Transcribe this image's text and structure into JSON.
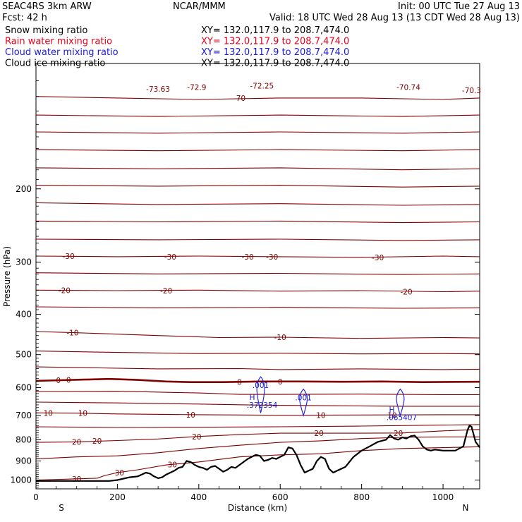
{
  "header": {
    "model": "SEAC4RS  3km ARW",
    "org": "NCAR/MMM",
    "init": "Init: 00 UTC Tue 27 Aug 13",
    "fcst": "Fcst:   42 h",
    "valid": "Valid: 18 UTC Wed 28 Aug 13 (13 CDT Wed 28 Aug 13)"
  },
  "fields": [
    {
      "label": "Snow mixing ratio",
      "xy": "XY= 132.0,117.9 to 208.7,474.0",
      "color": "#000000"
    },
    {
      "label": "Rain water mixing ratio",
      "xy": "XY= 132.0,117.9 to 208.7,474.0",
      "color": "#e8001a"
    },
    {
      "label": "Cloud water mixing ratio",
      "xy": "XY= 132.0,117.9 to 208.7,474.0",
      "color": "#1a1adc"
    },
    {
      "label": "Cloud ice mixing ratio",
      "xy": "XY= 132.0,117.9 to 208.7,474.0",
      "color": "#000000"
    }
  ],
  "chart_data": {
    "type": "line",
    "title": "",
    "xlabel": "Distance (km)",
    "ylabel": "Pressure (hPa)",
    "xlim": [
      0,
      1090
    ],
    "ylim": [
      1050,
      100
    ],
    "y_scale": "log",
    "x_ticks": [
      0,
      200,
      400,
      600,
      800,
      1000
    ],
    "y_ticks": [
      200,
      300,
      400,
      500,
      600,
      700,
      800,
      900,
      1000
    ],
    "y_tick_labels": [
      "200",
      "300",
      "400",
      "500",
      "600",
      "700",
      "800",
      "900",
      "1000"
    ],
    "x_end_labels": {
      "left": "S",
      "right": "N"
    },
    "grid": false,
    "temperature_color": "#800000",
    "terrain_color": "#000000",
    "cloud_color": "#1a1adc",
    "temperature_contours": [
      {
        "level": -70,
        "points": [
          [
            0,
            120
          ],
          [
            200,
            121
          ],
          [
            400,
            122
          ],
          [
            600,
            121
          ],
          [
            800,
            121
          ],
          [
            1000,
            122
          ],
          [
            1090,
            121
          ]
        ]
      },
      {
        "level": null,
        "points": [
          [
            0,
            133
          ],
          [
            300,
            134
          ],
          [
            600,
            133
          ],
          [
            900,
            134
          ],
          [
            1090,
            133
          ]
        ]
      },
      {
        "level": null,
        "points": [
          [
            0,
            146
          ],
          [
            300,
            147
          ],
          [
            600,
            146
          ],
          [
            900,
            147
          ],
          [
            1090,
            146
          ]
        ]
      },
      {
        "level": null,
        "points": [
          [
            0,
            161
          ],
          [
            300,
            162
          ],
          [
            600,
            161
          ],
          [
            900,
            162
          ],
          [
            1090,
            161
          ]
        ]
      },
      {
        "level": null,
        "points": [
          [
            0,
            178
          ],
          [
            300,
            179
          ],
          [
            600,
            178
          ],
          [
            900,
            180
          ],
          [
            1090,
            179
          ]
        ]
      },
      {
        "level": null,
        "points": [
          [
            0,
            196
          ],
          [
            300,
            197
          ],
          [
            600,
            196
          ],
          [
            900,
            198
          ],
          [
            1090,
            197
          ]
        ]
      },
      {
        "level": null,
        "points": [
          [
            0,
            216
          ],
          [
            300,
            218
          ],
          [
            600,
            217
          ],
          [
            900,
            219
          ],
          [
            1090,
            218
          ]
        ]
      },
      {
        "level": null,
        "points": [
          [
            0,
            239
          ],
          [
            300,
            240
          ],
          [
            600,
            239
          ],
          [
            900,
            241
          ],
          [
            1090,
            240
          ]
        ]
      },
      {
        "level": null,
        "points": [
          [
            0,
            264
          ],
          [
            300,
            265
          ],
          [
            600,
            264
          ],
          [
            900,
            266
          ],
          [
            1090,
            265
          ]
        ]
      },
      {
        "level": -30,
        "points": [
          [
            0,
            290
          ],
          [
            200,
            291
          ],
          [
            400,
            290
          ],
          [
            600,
            291
          ],
          [
            800,
            292
          ],
          [
            1000,
            290
          ],
          [
            1090,
            291
          ]
        ]
      },
      {
        "level": null,
        "points": [
          [
            0,
            318
          ],
          [
            300,
            320
          ],
          [
            600,
            319
          ],
          [
            900,
            321
          ],
          [
            1090,
            320
          ]
        ]
      },
      {
        "level": -20,
        "points": [
          [
            0,
            350
          ],
          [
            200,
            351
          ],
          [
            400,
            350
          ],
          [
            600,
            352
          ],
          [
            800,
            351
          ],
          [
            1000,
            353
          ],
          [
            1090,
            352
          ]
        ]
      },
      {
        "level": null,
        "points": [
          [
            0,
            384
          ],
          [
            300,
            386
          ],
          [
            600,
            385
          ],
          [
            900,
            387
          ],
          [
            1090,
            386
          ]
        ]
      },
      {
        "level": -10,
        "points": [
          [
            0,
            440
          ],
          [
            100,
            443
          ],
          [
            300,
            450
          ],
          [
            450,
            455
          ],
          [
            600,
            454
          ],
          [
            800,
            457
          ],
          [
            1000,
            455
          ],
          [
            1090,
            456
          ]
        ]
      },
      {
        "level": null,
        "points": [
          [
            0,
            490
          ],
          [
            200,
            494
          ],
          [
            400,
            497
          ],
          [
            600,
            496
          ],
          [
            800,
            498
          ],
          [
            1000,
            497
          ],
          [
            1090,
            498
          ]
        ]
      },
      {
        "level": null,
        "points": [
          [
            0,
            535
          ],
          [
            150,
            538
          ],
          [
            300,
            541
          ],
          [
            500,
            540
          ],
          [
            600,
            543
          ],
          [
            800,
            541
          ],
          [
            1000,
            543
          ],
          [
            1090,
            542
          ]
        ]
      },
      {
        "level": 0,
        "bold": true,
        "points": [
          [
            0,
            578
          ],
          [
            60,
            576
          ],
          [
            120,
            574
          ],
          [
            180,
            572
          ],
          [
            250,
            575
          ],
          [
            320,
            580
          ],
          [
            380,
            582
          ],
          [
            460,
            582
          ],
          [
            550,
            580
          ],
          [
            650,
            580
          ],
          [
            750,
            581
          ],
          [
            850,
            580
          ],
          [
            950,
            582
          ],
          [
            1090,
            581
          ]
        ]
      },
      {
        "level": null,
        "points": [
          [
            0,
            613
          ],
          [
            200,
            612
          ],
          [
            400,
            618
          ],
          [
            500,
            623
          ],
          [
            600,
            623
          ],
          [
            800,
            622
          ],
          [
            1000,
            624
          ],
          [
            1090,
            624
          ]
        ]
      },
      {
        "level": null,
        "points": [
          [
            0,
            650
          ],
          [
            200,
            653
          ],
          [
            400,
            657
          ],
          [
            550,
            661
          ],
          [
            700,
            663
          ],
          [
            900,
            665
          ],
          [
            1090,
            665
          ]
        ]
      },
      {
        "level": 10,
        "points": [
          [
            0,
            690
          ],
          [
            100,
            691
          ],
          [
            200,
            694
          ],
          [
            400,
            697
          ],
          [
            600,
            699
          ],
          [
            800,
            698
          ],
          [
            1000,
            697
          ],
          [
            1090,
            697
          ]
        ]
      },
      {
        "level": null,
        "points": [
          [
            0,
            745
          ],
          [
            200,
            748
          ],
          [
            400,
            747
          ],
          [
            600,
            745
          ],
          [
            800,
            742
          ],
          [
            1000,
            738
          ],
          [
            1090,
            736
          ]
        ]
      },
      {
        "level": 20,
        "points": [
          [
            0,
            812
          ],
          [
            100,
            810
          ],
          [
            200,
            804
          ],
          [
            300,
            797
          ],
          [
            400,
            786
          ],
          [
            500,
            778
          ],
          [
            600,
            772
          ],
          [
            700,
            772
          ],
          [
            800,
            772
          ],
          [
            900,
            771
          ],
          [
            1000,
            762
          ],
          [
            1090,
            756
          ]
        ]
      },
      {
        "level": 30,
        "points": [
          [
            0,
            1000
          ],
          [
            80,
            995
          ],
          [
            150,
            990
          ],
          [
            170,
            975
          ],
          [
            200,
            960
          ],
          [
            250,
            945
          ],
          [
            320,
            920
          ],
          [
            400,
            905
          ],
          [
            500,
            880
          ],
          [
            600,
            870
          ],
          [
            700,
            865
          ],
          [
            800,
            850
          ],
          [
            900,
            840
          ],
          [
            1000,
            836
          ],
          [
            1090,
            832
          ]
        ]
      },
      {
        "level": null,
        "points": [
          [
            0,
            890
          ],
          [
            100,
            880
          ],
          [
            200,
            875
          ],
          [
            300,
            860
          ],
          [
            400,
            840
          ],
          [
            500,
            825
          ],
          [
            600,
            812
          ],
          [
            700,
            805
          ],
          [
            800,
            795
          ],
          [
            900,
            790
          ],
          [
            1000,
            788
          ],
          [
            1090,
            788
          ]
        ]
      }
    ],
    "contour_labels": [
      {
        "text": "-73.63",
        "x": 300,
        "p": 115
      },
      {
        "text": "-72.9",
        "x": 395,
        "p": 114
      },
      {
        "text": "-72.25",
        "x": 555,
        "p": 113
      },
      {
        "text": "-70.74",
        "x": 915,
        "p": 114
      },
      {
        "text": "-70.3",
        "x": 1070,
        "p": 116
      },
      {
        "text": "-70",
        "x": 500,
        "p": 121
      },
      {
        "text": "-30",
        "x": 80,
        "p": 290
      },
      {
        "text": "-30",
        "x": 330,
        "p": 291
      },
      {
        "text": "-30",
        "x": 520,
        "p": 291
      },
      {
        "text": "-30",
        "x": 580,
        "p": 291
      },
      {
        "text": "-30",
        "x": 840,
        "p": 292
      },
      {
        "text": "-20",
        "x": 70,
        "p": 350
      },
      {
        "text": "-20",
        "x": 320,
        "p": 351
      },
      {
        "text": "-20",
        "x": 910,
        "p": 353
      },
      {
        "text": "-10",
        "x": 90,
        "p": 443
      },
      {
        "text": "-10",
        "x": 600,
        "p": 454
      },
      {
        "text": "0",
        "x": 55,
        "p": 576
      },
      {
        "text": "0",
        "x": 80,
        "p": 575
      },
      {
        "text": "0",
        "x": 500,
        "p": 582
      },
      {
        "text": "0",
        "x": 600,
        "p": 580
      },
      {
        "text": "10",
        "x": 30,
        "p": 690
      },
      {
        "text": "10",
        "x": 115,
        "p": 691
      },
      {
        "text": "10",
        "x": 380,
        "p": 697
      },
      {
        "text": "10",
        "x": 700,
        "p": 699
      },
      {
        "text": "10",
        "x": 875,
        "p": 698
      },
      {
        "text": "20",
        "x": 100,
        "p": 810
      },
      {
        "text": "20",
        "x": 150,
        "p": 806
      },
      {
        "text": "20",
        "x": 395,
        "p": 787
      },
      {
        "text": "20",
        "x": 695,
        "p": 772
      },
      {
        "text": "20",
        "x": 890,
        "p": 771
      },
      {
        "text": "30",
        "x": 100,
        "p": 995
      },
      {
        "text": "30",
        "x": 205,
        "p": 960
      },
      {
        "text": "30",
        "x": 335,
        "p": 918
      }
    ],
    "terrain_surface": [
      [
        0,
        1005
      ],
      [
        180,
        1005
      ],
      [
        200,
        1000
      ],
      [
        230,
        985
      ],
      [
        250,
        980
      ],
      [
        260,
        970
      ],
      [
        270,
        960
      ],
      [
        280,
        965
      ],
      [
        290,
        980
      ],
      [
        300,
        990
      ],
      [
        310,
        985
      ],
      [
        320,
        970
      ],
      [
        330,
        960
      ],
      [
        340,
        950
      ],
      [
        350,
        935
      ],
      [
        360,
        930
      ],
      [
        370,
        900
      ],
      [
        380,
        905
      ],
      [
        390,
        920
      ],
      [
        400,
        930
      ],
      [
        410,
        935
      ],
      [
        420,
        945
      ],
      [
        430,
        930
      ],
      [
        440,
        925
      ],
      [
        450,
        940
      ],
      [
        460,
        955
      ],
      [
        470,
        945
      ],
      [
        480,
        930
      ],
      [
        490,
        935
      ],
      [
        500,
        920
      ],
      [
        510,
        905
      ],
      [
        520,
        890
      ],
      [
        530,
        880
      ],
      [
        540,
        870
      ],
      [
        550,
        875
      ],
      [
        560,
        900
      ],
      [
        570,
        895
      ],
      [
        580,
        885
      ],
      [
        590,
        890
      ],
      [
        600,
        880
      ],
      [
        610,
        870
      ],
      [
        620,
        835
      ],
      [
        630,
        840
      ],
      [
        640,
        870
      ],
      [
        650,
        920
      ],
      [
        660,
        960
      ],
      [
        670,
        950
      ],
      [
        680,
        940
      ],
      [
        690,
        900
      ],
      [
        700,
        880
      ],
      [
        710,
        890
      ],
      [
        720,
        940
      ],
      [
        730,
        960
      ],
      [
        740,
        950
      ],
      [
        760,
        930
      ],
      [
        780,
        880
      ],
      [
        800,
        850
      ],
      [
        820,
        830
      ],
      [
        840,
        810
      ],
      [
        860,
        800
      ],
      [
        870,
        780
      ],
      [
        880,
        795
      ],
      [
        890,
        800
      ],
      [
        900,
        790
      ],
      [
        910,
        795
      ],
      [
        920,
        785
      ],
      [
        930,
        782
      ],
      [
        940,
        800
      ],
      [
        950,
        830
      ],
      [
        960,
        845
      ],
      [
        970,
        850
      ],
      [
        980,
        845
      ],
      [
        1000,
        850
      ],
      [
        1030,
        850
      ],
      [
        1050,
        830
      ],
      [
        1060,
        760
      ],
      [
        1065,
        740
      ],
      [
        1070,
        745
      ],
      [
        1080,
        810
      ],
      [
        1090,
        835
      ]
    ],
    "cloud_water_cells": [
      {
        "label_top": ".001",
        "label_h": "H",
        "max": ".372354",
        "x": 552,
        "p_top": 565,
        "p_bot": 690
      },
      {
        "label_top": ".001",
        "label_h": "",
        "max": "",
        "x": 657,
        "p_top": 605,
        "p_bot": 700
      },
      {
        "label_top": "",
        "label_h": "H",
        "max": ".065407",
        "x": 895,
        "p_top": 605,
        "p_bot": 700
      }
    ]
  }
}
